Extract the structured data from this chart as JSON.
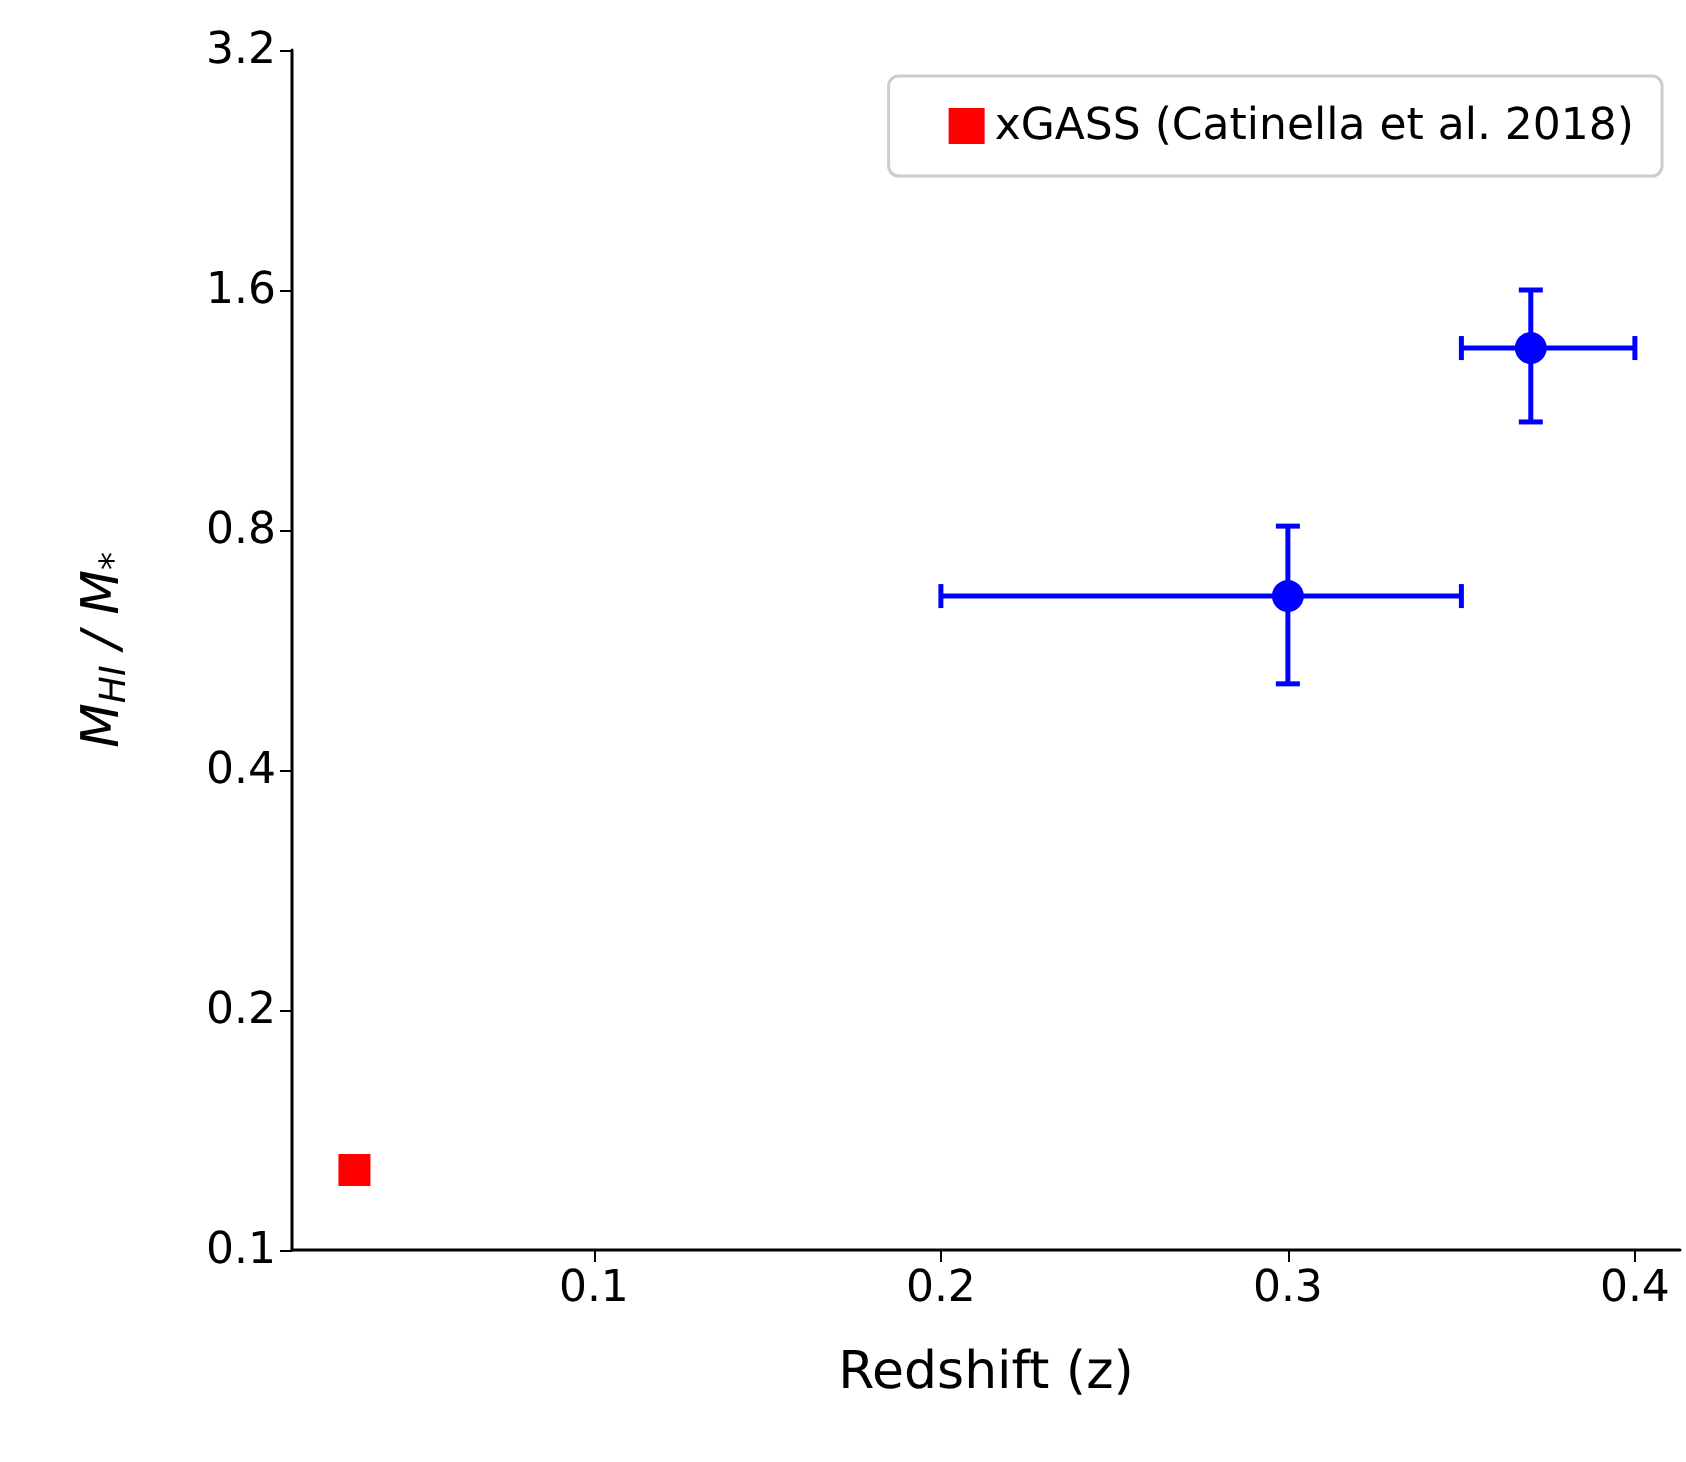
{
  "chart_data": {
    "type": "scatter",
    "xlabel": "Redshift (z)",
    "ylabel": "M$_{HI}$ / M$_{*}$",
    "log": "y",
    "xlim": [
      0.013,
      0.413
    ],
    "xticks": [
      0.1,
      0.2,
      0.3,
      0.4
    ],
    "ylim": [
      0.1,
      3.2
    ],
    "yticks": [
      0.1,
      0.2,
      0.4,
      0.8,
      1.6,
      3.2
    ],
    "grid": false,
    "legend": "top right",
    "series": [
      {
        "name": "xGASS (Catinella et al. 2018)",
        "color": "#ff0000",
        "marker": "square",
        "x": [
          0.031
        ],
        "values": [
          0.126
        ]
      },
      {
        "color": "#0000ff",
        "marker": "circle",
        "x": [
          0.3,
          0.37
        ],
        "values": [
          0.661,
          1.353
        ],
        "errors": [
          [
            0.513,
            0.809
          ],
          [
            1.093,
            1.6
          ]
        ],
        "xerrors": [
          [
            0.2,
            0.35
          ],
          [
            0.35,
            0.4
          ]
        ]
      }
    ]
  }
}
